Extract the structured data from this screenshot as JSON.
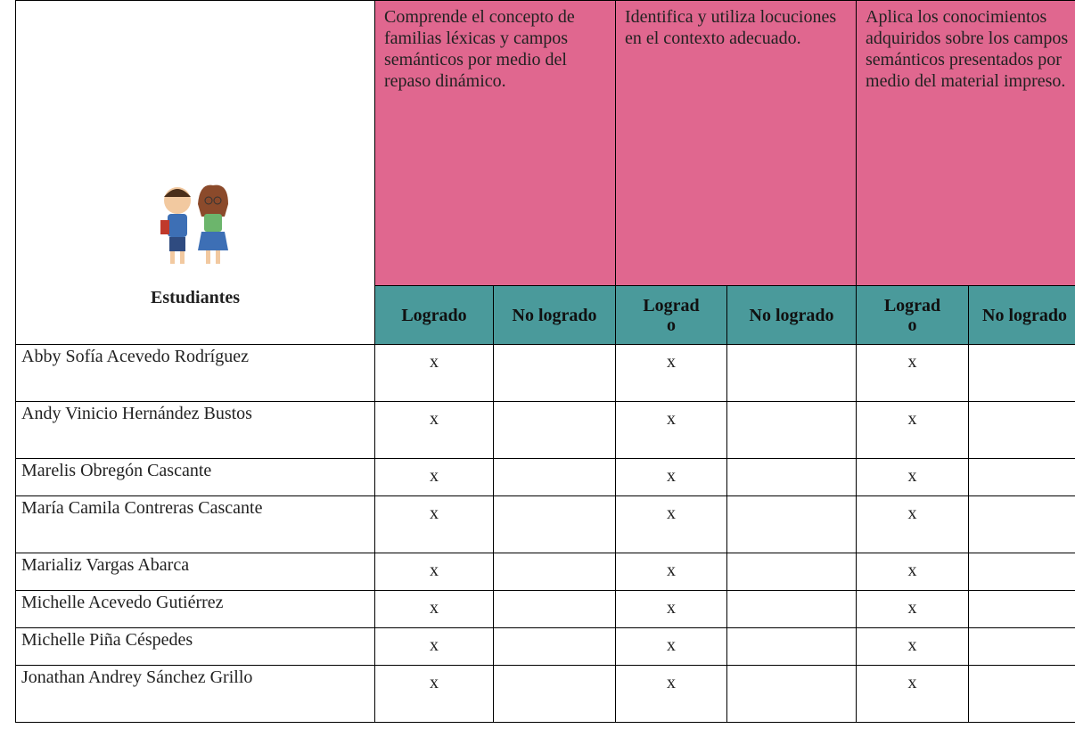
{
  "header": {
    "students": "Estudiantes",
    "criteria": [
      "Comprende el concepto de familias léxicas y campos semánticos por medio del repaso dinámico.",
      "Identifica y utiliza locuciones en el contexto adecuado.",
      "Aplica los conocimientos adquiridos sobre los campos semánticos presentados por medio del material impreso."
    ],
    "achieved": "Logrado",
    "not_achieved": "No logrado"
  },
  "table": {
    "rows": [
      {
        "name": "Abby Sofía Acevedo Rodríguez",
        "marks": [
          "x",
          "x",
          "x"
        ]
      },
      {
        "name": "Andy Vinicio Hernández Bustos",
        "marks": [
          "x",
          "x",
          "x"
        ]
      },
      {
        "name": "Marelis Obregón Cascante",
        "marks": [
          "x",
          "x",
          "x"
        ]
      },
      {
        "name": "María Camila Contreras Cascante",
        "marks": [
          "x",
          "x",
          "x"
        ]
      },
      {
        "name": "Marializ Vargas Abarca",
        "marks": [
          "x",
          "x",
          "x"
        ]
      },
      {
        "name": "Michelle Acevedo Gutiérrez",
        "marks": [
          "x",
          "x",
          "x"
        ]
      },
      {
        "name": "Michelle Piña Céspedes",
        "marks": [
          "x",
          "x",
          "x"
        ]
      },
      {
        "name": "Jonathan Andrey Sánchez Grillo",
        "marks": [
          "x",
          "x",
          "x"
        ]
      }
    ]
  }
}
